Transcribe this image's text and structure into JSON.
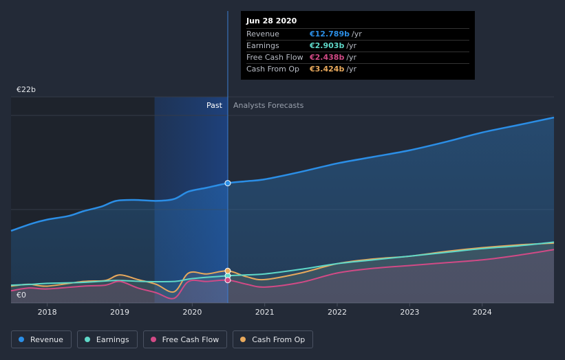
{
  "chart_data": {
    "type": "area",
    "title": "",
    "currency_unit": "€",
    "y_axis": {
      "max_label": "€22b",
      "min_label": "€0",
      "ylim": [
        0,
        22
      ]
    },
    "x_axis": {
      "ticks": [
        "2018",
        "2019",
        "2020",
        "2021",
        "2022",
        "2023",
        "2024"
      ],
      "xlim": [
        2017.5,
        2024.99
      ]
    },
    "zones": {
      "past_label": "Past",
      "forecast_label": "Analysts Forecasts",
      "divider_x": 2020.49,
      "highlight_start": 2019.48
    },
    "colors": {
      "revenue": "#2b8ee6",
      "earnings": "#5fd8c8",
      "fcf": "#d24a86",
      "cfo": "#e8a95c",
      "background": "#232a37"
    },
    "series": [
      {
        "key": "revenue",
        "name": "Revenue",
        "points": [
          [
            2017.5,
            7.7
          ],
          [
            2017.8,
            8.5
          ],
          [
            2018.0,
            8.9
          ],
          [
            2018.3,
            9.3
          ],
          [
            2018.5,
            9.8
          ],
          [
            2018.75,
            10.3
          ],
          [
            2018.95,
            10.9
          ],
          [
            2019.2,
            11.0
          ],
          [
            2019.5,
            10.9
          ],
          [
            2019.75,
            11.1
          ],
          [
            2019.95,
            11.9
          ],
          [
            2020.2,
            12.3
          ],
          [
            2020.49,
            12.79
          ],
          [
            2020.75,
            13.0
          ],
          [
            2021.0,
            13.2
          ],
          [
            2021.5,
            14.0
          ],
          [
            2022.0,
            14.9
          ],
          [
            2022.5,
            15.6
          ],
          [
            2023.0,
            16.3
          ],
          [
            2023.5,
            17.2
          ],
          [
            2024.0,
            18.2
          ],
          [
            2024.5,
            19.0
          ],
          [
            2024.99,
            19.8
          ]
        ]
      },
      {
        "key": "earnings",
        "name": "Earnings",
        "points": [
          [
            2017.5,
            1.9
          ],
          [
            2017.8,
            2.0
          ],
          [
            2018.0,
            2.1
          ],
          [
            2018.5,
            2.2
          ],
          [
            2018.95,
            2.4
          ],
          [
            2019.3,
            2.3
          ],
          [
            2019.75,
            2.3
          ],
          [
            2020.0,
            2.6
          ],
          [
            2020.49,
            2.903
          ],
          [
            2020.75,
            3.0
          ],
          [
            2021.0,
            3.1
          ],
          [
            2021.5,
            3.6
          ],
          [
            2022.0,
            4.2
          ],
          [
            2022.5,
            4.6
          ],
          [
            2023.0,
            5.0
          ],
          [
            2023.5,
            5.4
          ],
          [
            2024.0,
            5.8
          ],
          [
            2024.5,
            6.1
          ],
          [
            2024.99,
            6.5
          ]
        ]
      },
      {
        "key": "fcf",
        "name": "Free Cash Flow",
        "points": [
          [
            2017.5,
            1.3
          ],
          [
            2017.75,
            1.6
          ],
          [
            2018.0,
            1.5
          ],
          [
            2018.5,
            1.8
          ],
          [
            2018.8,
            1.9
          ],
          [
            2019.0,
            2.3
          ],
          [
            2019.25,
            1.6
          ],
          [
            2019.5,
            1.1
          ],
          [
            2019.75,
            0.5
          ],
          [
            2019.95,
            2.3
          ],
          [
            2020.2,
            2.3
          ],
          [
            2020.49,
            2.438
          ],
          [
            2020.75,
            2.0
          ],
          [
            2021.0,
            1.7
          ],
          [
            2021.5,
            2.2
          ],
          [
            2022.0,
            3.2
          ],
          [
            2022.5,
            3.7
          ],
          [
            2023.0,
            4.0
          ],
          [
            2023.5,
            4.3
          ],
          [
            2024.0,
            4.6
          ],
          [
            2024.5,
            5.1
          ],
          [
            2024.99,
            5.7
          ]
        ]
      },
      {
        "key": "cfo",
        "name": "Cash From Op",
        "points": [
          [
            2017.5,
            1.8
          ],
          [
            2017.75,
            2.0
          ],
          [
            2018.0,
            1.8
          ],
          [
            2018.5,
            2.3
          ],
          [
            2018.8,
            2.4
          ],
          [
            2019.0,
            3.0
          ],
          [
            2019.25,
            2.5
          ],
          [
            2019.5,
            2.0
          ],
          [
            2019.75,
            1.2
          ],
          [
            2019.95,
            3.2
          ],
          [
            2020.2,
            3.1
          ],
          [
            2020.49,
            3.424
          ],
          [
            2020.75,
            2.8
          ],
          [
            2021.0,
            2.5
          ],
          [
            2021.5,
            3.2
          ],
          [
            2022.0,
            4.2
          ],
          [
            2022.5,
            4.7
          ],
          [
            2023.0,
            5.0
          ],
          [
            2023.5,
            5.5
          ],
          [
            2024.0,
            5.9
          ],
          [
            2024.5,
            6.2
          ],
          [
            2024.99,
            6.4
          ]
        ]
      }
    ],
    "highlight": {
      "x": 2020.49
    }
  },
  "tooltip": {
    "date": "Jun 28 2020",
    "rows": [
      {
        "name": "Revenue",
        "value": "€12.789b",
        "unit": "/yr",
        "color": "#2b8ee6"
      },
      {
        "name": "Earnings",
        "value": "€2.903b",
        "unit": "/yr",
        "color": "#5fd8c8"
      },
      {
        "name": "Free Cash Flow",
        "value": "€2.438b",
        "unit": "/yr",
        "color": "#d24a86"
      },
      {
        "name": "Cash From Op",
        "value": "€3.424b",
        "unit": "/yr",
        "color": "#e8a95c"
      }
    ]
  },
  "legend": [
    {
      "label": "Revenue",
      "color": "#2b8ee6"
    },
    {
      "label": "Earnings",
      "color": "#5fd8c8"
    },
    {
      "label": "Free Cash Flow",
      "color": "#d24a86"
    },
    {
      "label": "Cash From Op",
      "color": "#e8a95c"
    }
  ]
}
